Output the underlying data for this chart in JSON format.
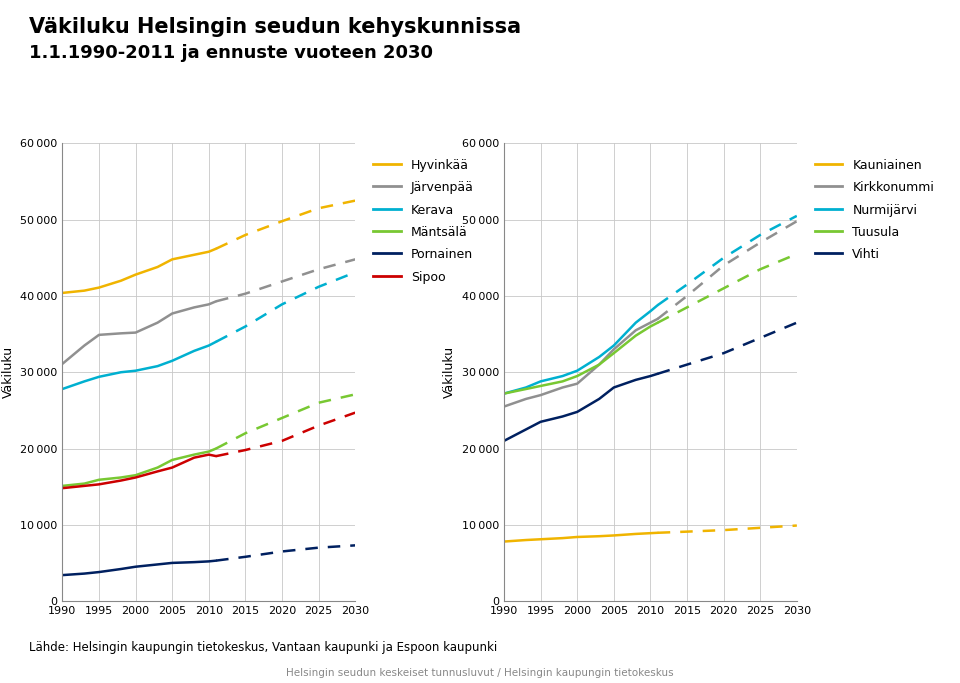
{
  "title_line1": "Väkiluku Helsingin seudun kehyskunnissa",
  "title_line2": "1.1.1990-2011 ja ennuste vuoteen 2030",
  "ylabel": "Väkiluku",
  "source_text": "Lähde: Helsingin kaupungin tietokeskus, Vantaan kaupunki ja Espoon kaupunki",
  "footer_text": "Helsingin seudun keskeiset tunnusluvut / Helsingin kaupungin tietokeskus",
  "xlim": [
    1990,
    2030
  ],
  "ylim": [
    0,
    60000
  ],
  "yticks": [
    0,
    10000,
    20000,
    30000,
    40000,
    50000,
    60000
  ],
  "xticks": [
    1990,
    1995,
    2000,
    2005,
    2010,
    2015,
    2020,
    2025,
    2030
  ],
  "split_year": 2011,
  "left_series": {
    "Hyvinkää": {
      "color": "#f0b400",
      "hist": [
        [
          1990,
          40400
        ],
        [
          1993,
          40700
        ],
        [
          1995,
          41100
        ],
        [
          1998,
          42000
        ],
        [
          2000,
          42800
        ],
        [
          2003,
          43800
        ],
        [
          2005,
          44800
        ],
        [
          2008,
          45400
        ],
        [
          2010,
          45800
        ],
        [
          2011,
          46200
        ]
      ],
      "fore": [
        [
          2011,
          46200
        ],
        [
          2015,
          48000
        ],
        [
          2020,
          49800
        ],
        [
          2025,
          51500
        ],
        [
          2030,
          52500
        ]
      ]
    },
    "Järvenpää": {
      "color": "#909090",
      "hist": [
        [
          1990,
          31100
        ],
        [
          1993,
          33500
        ],
        [
          1995,
          34900
        ],
        [
          1998,
          35100
        ],
        [
          2000,
          35200
        ],
        [
          2003,
          36500
        ],
        [
          2005,
          37700
        ],
        [
          2008,
          38500
        ],
        [
          2010,
          38900
        ],
        [
          2011,
          39300
        ]
      ],
      "fore": [
        [
          2011,
          39300
        ],
        [
          2015,
          40300
        ],
        [
          2020,
          41900
        ],
        [
          2025,
          43500
        ],
        [
          2030,
          44800
        ]
      ]
    },
    "Kerava": {
      "color": "#00b0d0",
      "hist": [
        [
          1990,
          27800
        ],
        [
          1993,
          28800
        ],
        [
          1995,
          29400
        ],
        [
          1998,
          30000
        ],
        [
          2000,
          30200
        ],
        [
          2003,
          30800
        ],
        [
          2005,
          31500
        ],
        [
          2008,
          32800
        ],
        [
          2010,
          33500
        ],
        [
          2011,
          34000
        ]
      ],
      "fore": [
        [
          2011,
          34000
        ],
        [
          2015,
          36000
        ],
        [
          2020,
          38900
        ],
        [
          2025,
          41200
        ],
        [
          2030,
          43100
        ]
      ]
    },
    "Mäntsälä": {
      "color": "#78c832",
      "hist": [
        [
          1990,
          15100
        ],
        [
          1993,
          15400
        ],
        [
          1995,
          15900
        ],
        [
          1998,
          16200
        ],
        [
          2000,
          16500
        ],
        [
          2003,
          17500
        ],
        [
          2005,
          18500
        ],
        [
          2008,
          19200
        ],
        [
          2010,
          19600
        ],
        [
          2011,
          20000
        ]
      ],
      "fore": [
        [
          2011,
          20000
        ],
        [
          2015,
          22000
        ],
        [
          2020,
          24000
        ],
        [
          2025,
          26000
        ],
        [
          2030,
          27100
        ]
      ]
    },
    "Pornainen": {
      "color": "#002060",
      "hist": [
        [
          1990,
          3400
        ],
        [
          1993,
          3600
        ],
        [
          1995,
          3800
        ],
        [
          1998,
          4200
        ],
        [
          2000,
          4500
        ],
        [
          2003,
          4800
        ],
        [
          2005,
          5000
        ],
        [
          2008,
          5100
        ],
        [
          2010,
          5200
        ],
        [
          2011,
          5300
        ]
      ],
      "fore": [
        [
          2011,
          5300
        ],
        [
          2015,
          5800
        ],
        [
          2020,
          6500
        ],
        [
          2025,
          7000
        ],
        [
          2030,
          7300
        ]
      ]
    },
    "Sipoo": {
      "color": "#cc0000",
      "hist": [
        [
          1990,
          14800
        ],
        [
          1993,
          15100
        ],
        [
          1995,
          15300
        ],
        [
          1998,
          15800
        ],
        [
          2000,
          16200
        ],
        [
          2003,
          17000
        ],
        [
          2005,
          17500
        ],
        [
          2008,
          18800
        ],
        [
          2010,
          19200
        ],
        [
          2011,
          19000
        ]
      ],
      "fore": [
        [
          2011,
          19000
        ],
        [
          2015,
          19800
        ],
        [
          2020,
          21000
        ],
        [
          2025,
          23000
        ],
        [
          2030,
          24700
        ]
      ]
    }
  },
  "right_series": {
    "Kauniainen": {
      "color": "#f0b400",
      "hist": [
        [
          1990,
          7800
        ],
        [
          1993,
          8000
        ],
        [
          1995,
          8100
        ],
        [
          1998,
          8250
        ],
        [
          2000,
          8400
        ],
        [
          2003,
          8500
        ],
        [
          2005,
          8600
        ],
        [
          2008,
          8800
        ],
        [
          2010,
          8900
        ],
        [
          2011,
          8950
        ]
      ],
      "fore": [
        [
          2011,
          8950
        ],
        [
          2015,
          9100
        ],
        [
          2020,
          9300
        ],
        [
          2025,
          9600
        ],
        [
          2030,
          9900
        ]
      ]
    },
    "Kirkkonummi": {
      "color": "#909090",
      "hist": [
        [
          1990,
          25500
        ],
        [
          1993,
          26500
        ],
        [
          1995,
          27000
        ],
        [
          1998,
          28000
        ],
        [
          2000,
          28500
        ],
        [
          2003,
          31000
        ],
        [
          2005,
          33000
        ],
        [
          2008,
          35500
        ],
        [
          2010,
          36500
        ],
        [
          2011,
          37000
        ]
      ],
      "fore": [
        [
          2011,
          37000
        ],
        [
          2015,
          40000
        ],
        [
          2020,
          44000
        ],
        [
          2025,
          47000
        ],
        [
          2030,
          49800
        ]
      ]
    },
    "Nurmijärvi": {
      "color": "#00b0d0",
      "hist": [
        [
          1990,
          27200
        ],
        [
          1993,
          28000
        ],
        [
          1995,
          28800
        ],
        [
          1998,
          29500
        ],
        [
          2000,
          30200
        ],
        [
          2003,
          32000
        ],
        [
          2005,
          33500
        ],
        [
          2008,
          36500
        ],
        [
          2010,
          38000
        ],
        [
          2011,
          38800
        ]
      ],
      "fore": [
        [
          2011,
          38800
        ],
        [
          2015,
          41500
        ],
        [
          2020,
          45000
        ],
        [
          2025,
          48000
        ],
        [
          2030,
          50500
        ]
      ]
    },
    "Tuusula": {
      "color": "#78c832",
      "hist": [
        [
          1990,
          27200
        ],
        [
          1993,
          27800
        ],
        [
          1995,
          28200
        ],
        [
          1998,
          28800
        ],
        [
          2000,
          29500
        ],
        [
          2003,
          31000
        ],
        [
          2005,
          32500
        ],
        [
          2008,
          34800
        ],
        [
          2010,
          36000
        ],
        [
          2011,
          36500
        ]
      ],
      "fore": [
        [
          2011,
          36500
        ],
        [
          2015,
          38500
        ],
        [
          2020,
          41000
        ],
        [
          2025,
          43500
        ],
        [
          2030,
          45500
        ]
      ]
    },
    "Vihti": {
      "color": "#002060",
      "hist": [
        [
          1990,
          21000
        ],
        [
          1993,
          22500
        ],
        [
          1995,
          23500
        ],
        [
          1998,
          24200
        ],
        [
          2000,
          24800
        ],
        [
          2003,
          26500
        ],
        [
          2005,
          28000
        ],
        [
          2008,
          29000
        ],
        [
          2010,
          29500
        ],
        [
          2011,
          29800
        ]
      ],
      "fore": [
        [
          2011,
          29800
        ],
        [
          2015,
          31000
        ],
        [
          2020,
          32500
        ],
        [
          2025,
          34500
        ],
        [
          2030,
          36500
        ]
      ]
    }
  }
}
